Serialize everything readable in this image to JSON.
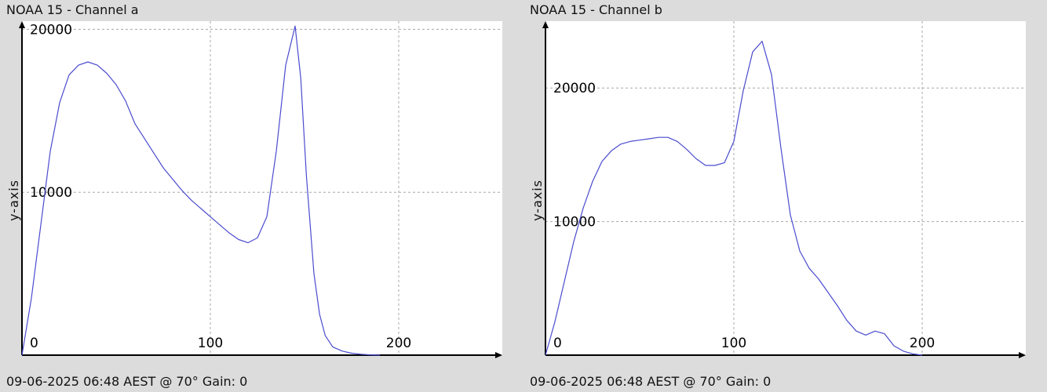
{
  "colors": {
    "series": "#4b4bcf",
    "background": "#dcdcdc",
    "plot_background": "#ffffff"
  },
  "panels": [
    {
      "title": "NOAA 15 - Channel a",
      "footer": "09-06-2025 06:48 AEST @ 70° Gain: 0",
      "ylabel": "y-axis"
    },
    {
      "title": "NOAA 15 - Channel b",
      "footer": "09-06-2025 06:48 AEST @ 70° Gain: 0",
      "ylabel": "y-axis"
    }
  ],
  "chart_data": [
    {
      "type": "line",
      "title": "NOAA 15 - Channel a",
      "xlabel": "",
      "ylabel": "y-axis",
      "xlim": [
        0,
        255
      ],
      "ylim": [
        0,
        20500
      ],
      "xticks": [
        0,
        100,
        200
      ],
      "yticks": [
        10000,
        20000
      ],
      "grid": true,
      "x": [
        0,
        5,
        10,
        15,
        20,
        25,
        30,
        35,
        40,
        45,
        50,
        55,
        60,
        65,
        70,
        75,
        80,
        85,
        90,
        95,
        100,
        105,
        110,
        115,
        120,
        125,
        130,
        135,
        140,
        145,
        148,
        151,
        155,
        158,
        161,
        165,
        170,
        175,
        180,
        185,
        190
      ],
      "y": [
        0,
        3500,
        8000,
        12500,
        15500,
        17200,
        17800,
        18000,
        17800,
        17300,
        16600,
        15600,
        14200,
        13300,
        12400,
        11500,
        10800,
        10100,
        9500,
        9000,
        8500,
        8000,
        7500,
        7100,
        6900,
        7200,
        8500,
        12500,
        17800,
        20200,
        17000,
        11000,
        5000,
        2500,
        1200,
        500,
        250,
        120,
        60,
        20,
        0
      ]
    },
    {
      "type": "line",
      "title": "NOAA 15 - Channel b",
      "xlabel": "",
      "ylabel": "y-axis",
      "xlim": [
        0,
        255
      ],
      "ylim": [
        0,
        25000
      ],
      "xticks": [
        0,
        100,
        200
      ],
      "yticks": [
        10000,
        20000
      ],
      "grid": true,
      "x": [
        0,
        5,
        10,
        15,
        20,
        25,
        30,
        35,
        40,
        45,
        50,
        55,
        60,
        65,
        70,
        75,
        80,
        85,
        90,
        95,
        100,
        105,
        110,
        115,
        120,
        125,
        130,
        135,
        140,
        145,
        150,
        155,
        160,
        165,
        170,
        175,
        180,
        185,
        190,
        195,
        200
      ],
      "y": [
        0,
        2500,
        5500,
        8500,
        11000,
        13000,
        14500,
        15300,
        15800,
        16000,
        16100,
        16200,
        16300,
        16300,
        16000,
        15400,
        14700,
        14200,
        14200,
        14400,
        16000,
        19800,
        22700,
        23500,
        21000,
        15500,
        10500,
        7800,
        6500,
        5700,
        4700,
        3700,
        2600,
        1800,
        1500,
        1800,
        1600,
        700,
        300,
        100,
        0
      ]
    }
  ]
}
